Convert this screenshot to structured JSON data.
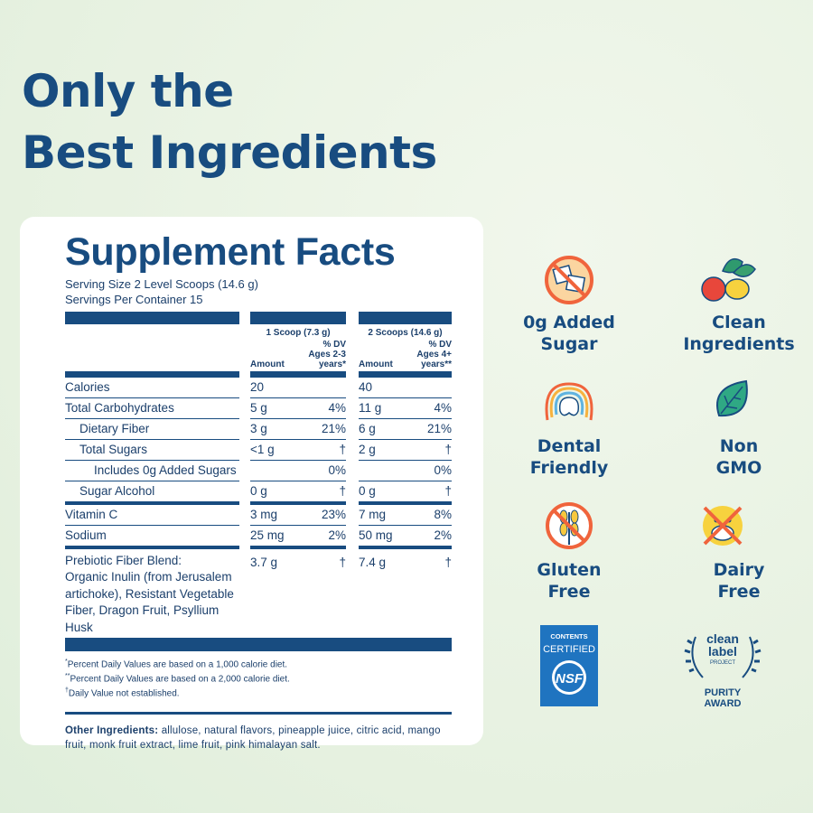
{
  "header": {
    "title": [
      "Only the",
      "Best Ingredients"
    ]
  },
  "facts": {
    "title": "Supplement Facts",
    "serving_size": "Serving Size 2 Level Scoops (14.6 g)",
    "servings_per_container": "Servings Per Container 15",
    "columns": [
      {
        "heading": "1 Scoop (7.3 g)",
        "amount": "Amount",
        "dv": "% DV Ages 2-3 years*"
      },
      {
        "heading": "2 Scoops (14.6 g)",
        "amount": "Amount",
        "dv": "% DV Ages 4+ years**"
      }
    ],
    "rows": [
      {
        "name": "Calories",
        "cells": [
          "20",
          null,
          "40",
          null
        ]
      },
      {
        "name": "Total Carbohydrates",
        "cells": [
          "5 g",
          "4%",
          "11 g",
          "4%"
        ],
        "children": [
          {
            "name": "Dietary Fiber",
            "cells": [
              "3 g",
              "21%",
              "6 g",
              "21%"
            ]
          },
          {
            "name": "Total Sugars",
            "cells": [
              "<1 g",
              "†",
              "2 g",
              "†"
            ],
            "children": [
              {
                "name": "Includes 0g Added Sugars",
                "cells": [
                  null,
                  "0%",
                  null,
                  "0%"
                ]
              }
            ]
          },
          {
            "name": "Sugar Alcohol",
            "cells": [
              "0 g",
              "†",
              "0 g",
              "†"
            ]
          }
        ]
      },
      {
        "name": "Vitamin C",
        "cells": [
          "3 mg",
          "23%",
          "7 mg",
          "8%"
        ]
      },
      {
        "name": "Sodium",
        "cells": [
          "25 mg",
          "2%",
          "50 mg",
          "2%"
        ]
      }
    ],
    "blend": {
      "name": "Prebiotic Fiber Blend:",
      "detail": "Organic Inulin (from Jerusalem artichoke), Resistant Vegetable Fiber, Dragon Fruit, Psyllium Husk",
      "cells": [
        "3.7 g",
        "†",
        "7.4 g",
        "†"
      ]
    },
    "footnotes": [
      {
        "mark": "*",
        "text": "Percent Daily Values are based on a 1,000 calorie diet."
      },
      {
        "mark": "**",
        "text": "Percent Daily Values are based on a 2,000 calorie diet."
      },
      {
        "mark": "†",
        "text": "Daily Value not established."
      }
    ],
    "other_ingredients": {
      "label": "Other Ingredients:",
      "text": "allulose, natural flavors, pineapple juice, citric acid, mango fruit, monk fruit extract, lime fruit, pink himalayan salt."
    }
  },
  "badges": [
    {
      "label": [
        "0g Added",
        "Sugar"
      ]
    },
    {
      "label": [
        "Clean",
        "Ingredients"
      ]
    },
    {
      "label": [
        "Dental",
        "Friendly"
      ]
    },
    {
      "label": [
        "Non",
        "GMO"
      ]
    },
    {
      "label": [
        "Gluten",
        "Free"
      ]
    },
    {
      "label": [
        "Dairy",
        "Free"
      ]
    }
  ],
  "certifications": {
    "nsf": {
      "top": [
        "CONTENTS",
        "CERTIFIED"
      ],
      "mark": "NSF"
    },
    "clean_label": {
      "top": [
        "clean",
        "label"
      ],
      "project": "PROJECT",
      "award": [
        "PURITY",
        "AWARD"
      ]
    }
  }
}
